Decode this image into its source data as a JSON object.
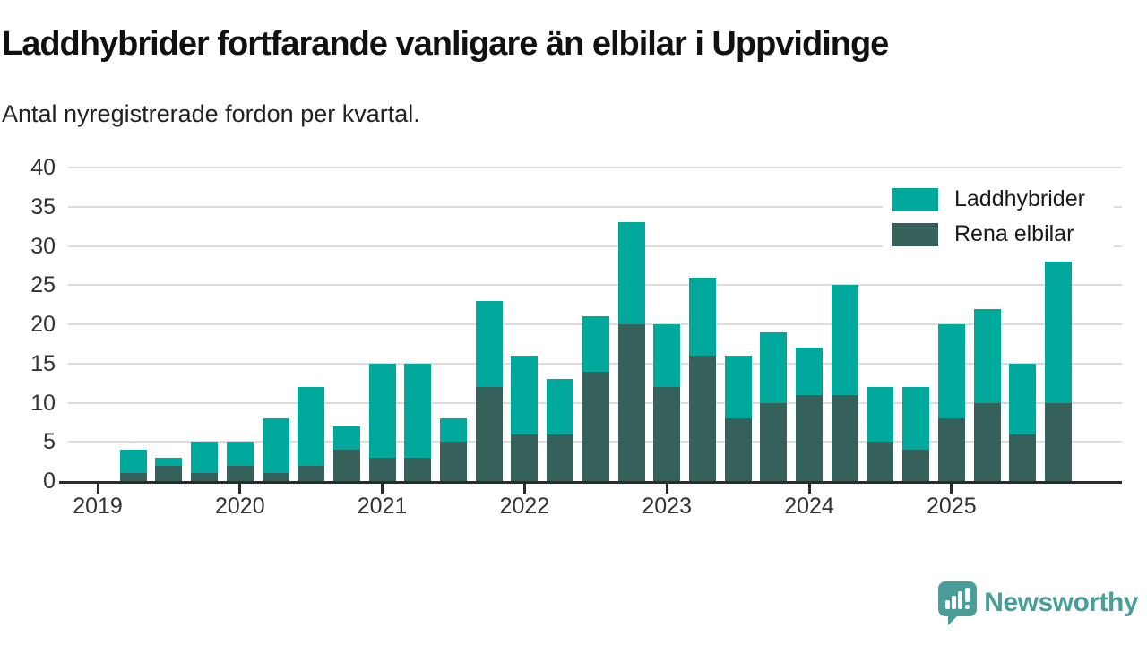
{
  "header": {
    "title": "Laddhybrider fortfarande vanligare än elbilar i Uppvidinge",
    "subtitle": "Antal nyregistrerade fordon per kvartal."
  },
  "legend": [
    {
      "label": "Laddhybrider",
      "color": "#00a99c"
    },
    {
      "label": "Rena elbilar",
      "color": "#35615a"
    }
  ],
  "footer": {
    "brand": "Newsworthy",
    "brand_color": "#4a9e9a",
    "logo_icon": "newsworthy-speech-bubble-chart-icon"
  },
  "chart_data": {
    "type": "bar",
    "stacked": true,
    "title": "Laddhybrider fortfarande vanligare än elbilar i Uppvidinge",
    "subtitle": "Antal nyregistrerade fordon per kvartal.",
    "xlabel": "",
    "ylabel": "",
    "ylim": [
      0,
      40
    ],
    "yticks": [
      0,
      5,
      10,
      15,
      20,
      25,
      30,
      35,
      40
    ],
    "grid": "horizontal",
    "legend_position": "top-right",
    "x": [
      "2019 Q2",
      "2019 Q3",
      "2019 Q4",
      "2020 Q1",
      "2020 Q2",
      "2020 Q3",
      "2020 Q4",
      "2021 Q1",
      "2021 Q2",
      "2021 Q3",
      "2021 Q4",
      "2022 Q1",
      "2022 Q2",
      "2022 Q3",
      "2022 Q4",
      "2023 Q1",
      "2023 Q2",
      "2023 Q3",
      "2023 Q4",
      "2024 Q1",
      "2024 Q2",
      "2024 Q3",
      "2024 Q4",
      "2025 Q1",
      "2025 Q2",
      "2025 Q3",
      "2025 Q4"
    ],
    "start_quarter_offset": 1,
    "year_labels": [
      "2019",
      "2020",
      "2021",
      "2022",
      "2023",
      "2024",
      "2025"
    ],
    "year_tick_quarter_offsets": [
      0,
      4,
      8,
      12,
      16,
      20,
      24
    ],
    "series": [
      {
        "name": "Laddhybrider",
        "color": "#00a99c",
        "stack_position": "top",
        "values": [
          3,
          1,
          4,
          3,
          7,
          10,
          3,
          12,
          12,
          3,
          11,
          10,
          7,
          7,
          13,
          8,
          10,
          8,
          9,
          6,
          14,
          7,
          8,
          12,
          12,
          9,
          18
        ]
      },
      {
        "name": "Rena elbilar",
        "color": "#35615a",
        "stack_position": "bottom",
        "values": [
          1,
          2,
          1,
          2,
          1,
          2,
          4,
          3,
          3,
          5,
          12,
          6,
          6,
          14,
          20,
          12,
          16,
          8,
          10,
          11,
          11,
          5,
          4,
          8,
          10,
          6,
          10
        ]
      }
    ],
    "stack_totals": [
      4,
      3,
      5,
      5,
      8,
      12,
      7,
      15,
      15,
      8,
      23,
      16,
      13,
      21,
      33,
      20,
      26,
      16,
      19,
      17,
      25,
      12,
      12,
      20,
      22,
      15,
      28
    ]
  }
}
